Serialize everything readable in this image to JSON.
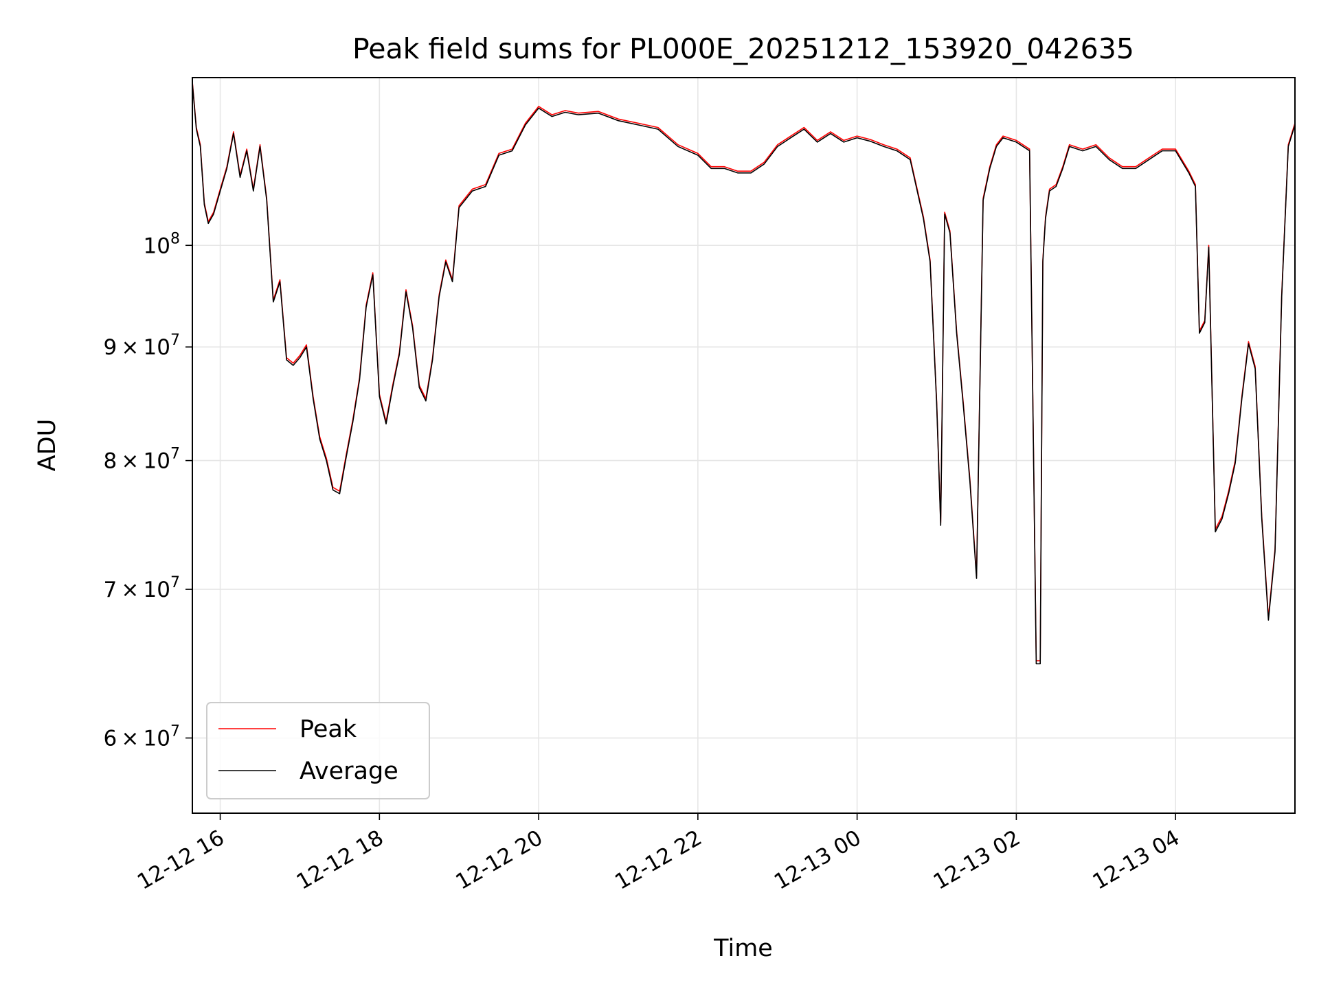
{
  "chart_data": {
    "type": "line",
    "title": "Peak field sums for PL000E_20251212_153920_042635",
    "xlabel": "Time",
    "ylabel": "ADU",
    "yscale": "log",
    "grid": true,
    "legend_position": "lower-left",
    "xlim": [
      "2025-12-12 15:39",
      "2025-12-13 05:30"
    ],
    "ylim": [
      55500000,
      119000000
    ],
    "x_ticks": [
      {
        "value": "2025-12-12 16:00",
        "label": "12-12 16"
      },
      {
        "value": "2025-12-12 18:00",
        "label": "12-12 18"
      },
      {
        "value": "2025-12-12 20:00",
        "label": "12-12 20"
      },
      {
        "value": "2025-12-12 22:00",
        "label": "12-12 22"
      },
      {
        "value": "2025-12-13 00:00",
        "label": "12-13 00"
      },
      {
        "value": "2025-12-13 02:00",
        "label": "12-13 02"
      },
      {
        "value": "2025-12-13 04:00",
        "label": "12-13 04"
      }
    ],
    "y_ticks": [
      {
        "value": 60000000,
        "mantissa": "6",
        "exponent": "7"
      },
      {
        "value": 70000000,
        "mantissa": "7",
        "exponent": "7"
      },
      {
        "value": 80000000,
        "mantissa": "8",
        "exponent": "7"
      },
      {
        "value": 90000000,
        "mantissa": "9",
        "exponent": "7"
      },
      {
        "value": 100000000,
        "mantissa": "",
        "exponent": "8"
      }
    ],
    "colors": {
      "peak": "#ff0000",
      "average": "#000000",
      "grid": "#e6e6e6"
    },
    "x": [
      "2025-12-12 15:39",
      "2025-12-12 15:42",
      "2025-12-12 15:45",
      "2025-12-12 15:48",
      "2025-12-12 15:51",
      "2025-12-12 15:55",
      "2025-12-12 16:00",
      "2025-12-12 16:05",
      "2025-12-12 16:10",
      "2025-12-12 16:15",
      "2025-12-12 16:20",
      "2025-12-12 16:25",
      "2025-12-12 16:30",
      "2025-12-12 16:35",
      "2025-12-12 16:40",
      "2025-12-12 16:45",
      "2025-12-12 16:50",
      "2025-12-12 16:55",
      "2025-12-12 17:00",
      "2025-12-12 17:05",
      "2025-12-12 17:10",
      "2025-12-12 17:15",
      "2025-12-12 17:20",
      "2025-12-12 17:25",
      "2025-12-12 17:30",
      "2025-12-12 17:35",
      "2025-12-12 17:40",
      "2025-12-12 17:45",
      "2025-12-12 17:50",
      "2025-12-12 17:55",
      "2025-12-12 18:00",
      "2025-12-12 18:05",
      "2025-12-12 18:10",
      "2025-12-12 18:15",
      "2025-12-12 18:20",
      "2025-12-12 18:25",
      "2025-12-12 18:30",
      "2025-12-12 18:35",
      "2025-12-12 18:40",
      "2025-12-12 18:45",
      "2025-12-12 18:50",
      "2025-12-12 18:55",
      "2025-12-12 19:00",
      "2025-12-12 19:10",
      "2025-12-12 19:20",
      "2025-12-12 19:30",
      "2025-12-12 19:40",
      "2025-12-12 19:50",
      "2025-12-12 20:00",
      "2025-12-12 20:10",
      "2025-12-12 20:20",
      "2025-12-12 20:30",
      "2025-12-12 20:45",
      "2025-12-12 21:00",
      "2025-12-12 21:15",
      "2025-12-12 21:30",
      "2025-12-12 21:45",
      "2025-12-12 22:00",
      "2025-12-12 22:10",
      "2025-12-12 22:20",
      "2025-12-12 22:30",
      "2025-12-12 22:40",
      "2025-12-12 22:50",
      "2025-12-12 23:00",
      "2025-12-12 23:10",
      "2025-12-12 23:20",
      "2025-12-12 23:30",
      "2025-12-12 23:40",
      "2025-12-12 23:50",
      "2025-12-13 00:00",
      "2025-12-13 00:10",
      "2025-12-13 00:20",
      "2025-12-13 00:30",
      "2025-12-13 00:40",
      "2025-12-13 00:50",
      "2025-12-13 00:55",
      "2025-12-13 01:00",
      "2025-12-13 01:03",
      "2025-12-13 01:06",
      "2025-12-13 01:10",
      "2025-12-13 01:15",
      "2025-12-13 01:20",
      "2025-12-13 01:25",
      "2025-12-13 01:30",
      "2025-12-13 01:35",
      "2025-12-13 01:40",
      "2025-12-13 01:45",
      "2025-12-13 01:50",
      "2025-12-13 02:00",
      "2025-12-13 02:10",
      "2025-12-13 02:15",
      "2025-12-13 02:18",
      "2025-12-13 02:20",
      "2025-12-13 02:22",
      "2025-12-13 02:25",
      "2025-12-13 02:30",
      "2025-12-13 02:35",
      "2025-12-13 02:40",
      "2025-12-13 02:50",
      "2025-12-13 03:00",
      "2025-12-13 03:10",
      "2025-12-13 03:20",
      "2025-12-13 03:30",
      "2025-12-13 03:40",
      "2025-12-13 03:50",
      "2025-12-13 04:00",
      "2025-12-13 04:10",
      "2025-12-13 04:15",
      "2025-12-13 04:18",
      "2025-12-13 04:22",
      "2025-12-13 04:25",
      "2025-12-13 04:30",
      "2025-12-13 04:35",
      "2025-12-13 04:40",
      "2025-12-13 04:45",
      "2025-12-13 04:50",
      "2025-12-13 04:55",
      "2025-12-13 05:00",
      "2025-12-13 05:05",
      "2025-12-13 05:10",
      "2025-12-13 05:15",
      "2025-12-13 05:20",
      "2025-12-13 05:25",
      "2025-12-13 05:30"
    ],
    "series": [
      {
        "name": "Peak",
        "key": "peak",
        "values": [
          118500000,
          113000000,
          111000000,
          104500000,
          102500000,
          103500000,
          106000000,
          108500000,
          112500000,
          107500000,
          110500000,
          106000000,
          111000000,
          105000000,
          94500000,
          96500000,
          89000000,
          88500000,
          89200000,
          90200000,
          85500000,
          82000000,
          80200000,
          77800000,
          77500000,
          80500000,
          83500000,
          87200000,
          94000000,
          97200000,
          85700000,
          83300000,
          86500000,
          89500000,
          95500000,
          92000000,
          86500000,
          85300000,
          89000000,
          95000000,
          98500000,
          96500000,
          104200000,
          106000000,
          106500000,
          110000000,
          110500000,
          113500000,
          115500000,
          114500000,
          115000000,
          114700000,
          114900000,
          114000000,
          113500000,
          113000000,
          111000000,
          110000000,
          108500000,
          108500000,
          108000000,
          108000000,
          109000000,
          111000000,
          112000000,
          113000000,
          111500000,
          112500000,
          111500000,
          112000000,
          111600000,
          111000000,
          110500000,
          109500000,
          103000000,
          98500000,
          85000000,
          75000000,
          103500000,
          101500000,
          91500000,
          85000000,
          78500000,
          71000000,
          105000000,
          108500000,
          111000000,
          112000000,
          111500000,
          110500000,
          65000000,
          65000000,
          98500000,
          103000000,
          106000000,
          106500000,
          108500000,
          111000000,
          110500000,
          111000000,
          109500000,
          108500000,
          108500000,
          109500000,
          110500000,
          110500000,
          108000000,
          106500000,
          91500000,
          92500000,
          100000000,
          74500000,
          75500000,
          77500000,
          80000000,
          85500000,
          90500000,
          88200000,
          75500000,
          68000000,
          73000000,
          95000000,
          111000000,
          113500000
        ]
      },
      {
        "name": "Average",
        "key": "average",
        "values": [
          118300000,
          112800000,
          110800000,
          104300000,
          102300000,
          103300000,
          105800000,
          108300000,
          112300000,
          107300000,
          110300000,
          105800000,
          110800000,
          104800000,
          94300000,
          96300000,
          88800000,
          88300000,
          89000000,
          90000000,
          85300000,
          81800000,
          80000000,
          77600000,
          77300000,
          80300000,
          83300000,
          87000000,
          93800000,
          97000000,
          85500000,
          83100000,
          86300000,
          89300000,
          95300000,
          91800000,
          86300000,
          85100000,
          88800000,
          94800000,
          98300000,
          96300000,
          104000000,
          105800000,
          106300000,
          109800000,
          110300000,
          113300000,
          115300000,
          114300000,
          114800000,
          114500000,
          114700000,
          113800000,
          113300000,
          112800000,
          110800000,
          109800000,
          108300000,
          108300000,
          107800000,
          107800000,
          108800000,
          110800000,
          111800000,
          112800000,
          111300000,
          112300000,
          111300000,
          111800000,
          111400000,
          110800000,
          110300000,
          109300000,
          102800000,
          98300000,
          84800000,
          74800000,
          103300000,
          101300000,
          91300000,
          84800000,
          78300000,
          70800000,
          104800000,
          108300000,
          110800000,
          111800000,
          111300000,
          110300000,
          64800000,
          64800000,
          98300000,
          102800000,
          105800000,
          106300000,
          108300000,
          110800000,
          110300000,
          110800000,
          109300000,
          108300000,
          108300000,
          109300000,
          110300000,
          110300000,
          107800000,
          106300000,
          91300000,
          92300000,
          99800000,
          74300000,
          75300000,
          77300000,
          79800000,
          85300000,
          90300000,
          88000000,
          75300000,
          67800000,
          72800000,
          94800000,
          110800000,
          113300000
        ]
      }
    ]
  }
}
